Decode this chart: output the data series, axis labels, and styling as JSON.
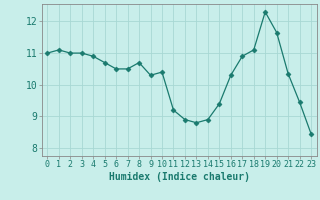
{
  "x": [
    0,
    1,
    2,
    3,
    4,
    5,
    6,
    7,
    8,
    9,
    10,
    11,
    12,
    13,
    14,
    15,
    16,
    17,
    18,
    19,
    20,
    21,
    22,
    23
  ],
  "y": [
    11.0,
    11.1,
    11.0,
    11.0,
    10.9,
    10.7,
    10.5,
    10.5,
    10.7,
    10.3,
    10.4,
    9.2,
    8.9,
    8.8,
    8.9,
    9.4,
    10.3,
    10.9,
    11.1,
    12.3,
    11.65,
    10.35,
    9.45,
    8.45
  ],
  "xlim": [
    -0.5,
    23.5
  ],
  "ylim": [
    7.75,
    12.55
  ],
  "yticks": [
    8,
    9,
    10,
    11,
    12
  ],
  "xlabel": "Humidex (Indice chaleur)",
  "line_color": "#1a7a6e",
  "marker": "D",
  "marker_size": 2.5,
  "bg_color": "#c8eeea",
  "grid_color": "#a8d8d4",
  "label_color": "#1a7a6e",
  "xlabel_fontsize": 7.0,
  "ytick_fontsize": 7.0,
  "xtick_fontsize": 6.0
}
